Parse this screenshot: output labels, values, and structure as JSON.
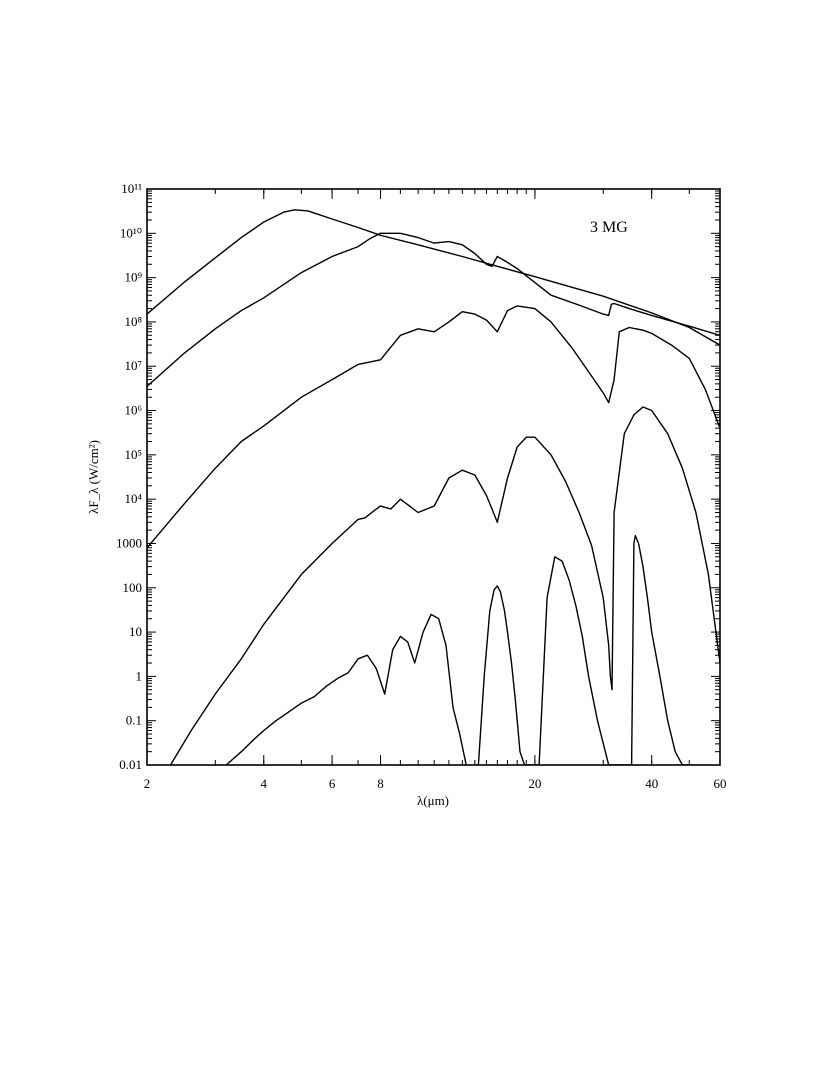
{
  "chart_data": {
    "type": "line",
    "annotation": "3 MG",
    "xlabel": "λ(μm)",
    "ylabel": "λF_λ (W/cm²)",
    "xscale": "log",
    "yscale": "log",
    "xlim": [
      2,
      60
    ],
    "ylim": [
      0.01,
      100000000000
    ],
    "grid": false,
    "x_ticks": [
      {
        "value": 2,
        "label": "2"
      },
      {
        "value": 4,
        "label": "4"
      },
      {
        "value": 6,
        "label": "6"
      },
      {
        "value": 8,
        "label": "8"
      },
      {
        "value": 20,
        "label": "20"
      },
      {
        "value": 40,
        "label": "40"
      },
      {
        "value": 60,
        "label": "60"
      }
    ],
    "y_ticks": [
      {
        "value": 0.01,
        "label": "0.01"
      },
      {
        "value": 0.1,
        "label": "0.1"
      },
      {
        "value": 1,
        "label": "1"
      },
      {
        "value": 10,
        "label": "10"
      },
      {
        "value": 100,
        "label": "100"
      },
      {
        "value": 1000,
        "label": "1000"
      },
      {
        "value": 10000,
        "label": "10⁴"
      },
      {
        "value": 100000,
        "label": "10⁵"
      },
      {
        "value": 1000000,
        "label": "10⁶"
      },
      {
        "value": 10000000,
        "label": "10⁷"
      },
      {
        "value": 100000000,
        "label": "10⁸"
      },
      {
        "value": 1000000000,
        "label": "10⁹"
      },
      {
        "value": 10000000000,
        "label": "10¹⁰"
      },
      {
        "value": 100000000000,
        "label": "10¹¹"
      }
    ],
    "series": [
      {
        "x": [
          2,
          2.5,
          3,
          3.5,
          4,
          4.5,
          4.8,
          5.2,
          6,
          7,
          8,
          10,
          13,
          16,
          20,
          25,
          30,
          40,
          50,
          60
        ],
        "y": [
          150000000.0,
          800000000.0,
          2800000000.0,
          8000000000.0,
          18000000000.0,
          30000000000.0,
          34000000000.0,
          32000000000.0,
          21000000000.0,
          13500000000.0,
          9000000000.0,
          5500000000.0,
          3000000000.0,
          1800000000.0,
          1050000000.0,
          600000000.0,
          380000000.0,
          160000000.0,
          75000000.0,
          30000000.0
        ]
      },
      {
        "x": [
          2,
          2.5,
          3,
          3.5,
          4,
          5,
          6,
          7,
          7.5,
          8,
          9,
          10,
          11,
          12,
          13,
          14,
          15,
          15.5,
          16,
          17,
          18,
          19,
          22,
          26,
          30,
          31,
          31.5,
          32,
          35,
          40,
          50,
          60
        ],
        "y": [
          3500000.0,
          20000000.0,
          70000000.0,
          180000000.0,
          350000000.0,
          1300000000.0,
          3000000000.0,
          5000000000.0,
          7500000000.0,
          10000000000.0,
          10000000000.0,
          8000000000.0,
          6000000000.0,
          6500000000.0,
          5500000000.0,
          3500000000.0,
          2000000000.0,
          1800000000.0,
          3000000000.0,
          2200000000.0,
          1600000000.0,
          1100000000.0,
          400000000.0,
          240000000.0,
          150000000.0,
          140000000.0,
          250000000.0,
          260000000.0,
          200000000.0,
          140000000.0,
          80000000.0,
          50000000.0
        ]
      },
      {
        "x": [
          2,
          2.5,
          3,
          3.5,
          4,
          5,
          6,
          7,
          8,
          9,
          10,
          11,
          12,
          13,
          14,
          15,
          16,
          17,
          18,
          20,
          22,
          25,
          28,
          30,
          31,
          32,
          33,
          35,
          38,
          40,
          45,
          50,
          55,
          60
        ],
        "y": [
          800.0,
          8000.0,
          50000.0,
          200000.0,
          450000.0,
          2000000.0,
          5000000.0,
          11000000.0,
          14000000.0,
          50000000.0,
          70000000.0,
          60000000.0,
          100000000.0,
          170000000.0,
          150000000.0,
          110000000.0,
          60000000.0,
          180000000.0,
          230000000.0,
          200000000.0,
          100000000.0,
          25000000.0,
          6000000.0,
          2500000.0,
          1500000.0,
          5000000.0,
          60000000.0,
          75000000.0,
          65000000.0,
          55000000.0,
          30000000.0,
          15000000.0,
          3000000.0,
          400000.0
        ]
      },
      {
        "x": [
          2.3,
          2.6,
          3,
          3.5,
          4,
          5,
          6,
          7,
          7.3,
          7.7,
          8,
          8.5,
          9,
          10,
          11,
          12,
          13,
          14,
          15,
          15.5,
          16,
          17,
          18,
          19,
          20,
          22,
          24,
          26,
          28,
          30,
          31,
          31.3,
          31.6,
          32,
          34,
          36,
          38,
          40,
          44,
          48,
          52,
          56,
          60
        ],
        "y": [
          0.01,
          0.06,
          0.4,
          2.5,
          15,
          200,
          1000,
          3500,
          3800,
          5500,
          7000,
          6000,
          10000,
          5000,
          7000,
          30000,
          45000,
          35000,
          12000,
          6000,
          3000,
          30000,
          150000,
          250000,
          250000,
          100000,
          25000,
          5000,
          900,
          60,
          5,
          1,
          0.5,
          5000,
          300000,
          800000,
          1200000,
          1000000,
          300000,
          50000,
          5000,
          200,
          2
        ]
      },
      {
        "x": [
          3.2,
          3.5,
          3.8,
          4,
          4.3,
          4.6,
          5,
          5.4,
          5.8,
          6.2,
          6.6,
          7,
          7.4,
          7.8,
          8.2,
          8.6,
          9,
          9.4,
          9.8,
          10.3,
          10.8,
          11.3,
          11.8,
          12.3,
          12.8,
          13.3,
          13.8,
          14.3,
          14.8,
          15.3,
          15.7,
          16,
          16.3,
          16.7,
          17,
          17.4,
          17.8,
          18.3,
          18.8,
          19.3,
          19.8,
          20.5,
          21.5,
          22.5,
          23.5,
          24.5,
          25.5,
          26.5,
          27.5,
          29,
          31,
          33,
          35.5,
          36,
          36.3,
          37,
          38,
          39,
          40,
          42,
          44,
          46,
          48,
          50,
          51
        ],
        "y": [
          0.01,
          0.02,
          0.04,
          0.06,
          0.1,
          0.15,
          0.25,
          0.35,
          0.6,
          0.9,
          1.2,
          2.5,
          3,
          1.5,
          0.4,
          4,
          8,
          6,
          2,
          10,
          25,
          20,
          5,
          0.2,
          0.05,
          0.01,
          0.005,
          0.01,
          1,
          30,
          90,
          110,
          80,
          30,
          10,
          2,
          0.3,
          0.02,
          0.01,
          0.01,
          0.01,
          0.01,
          60,
          500,
          400,
          150,
          40,
          8,
          1,
          0.1,
          0.01,
          0.01,
          0.01,
          1000,
          1500,
          1000,
          300,
          60,
          10,
          1,
          0.1,
          0.02,
          0.01,
          0.01,
          0.01
        ]
      }
    ]
  }
}
